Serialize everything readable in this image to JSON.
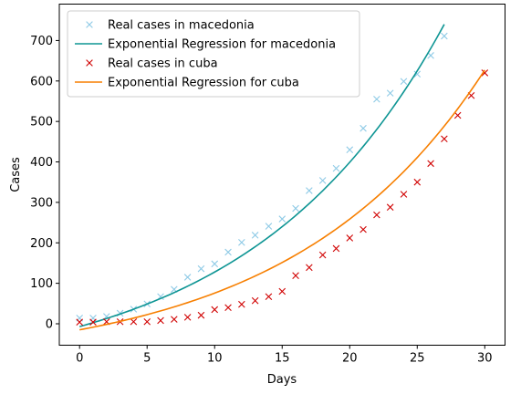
{
  "chart_data": {
    "type": "line",
    "title": "",
    "xlabel": "Days",
    "ylabel": "Cases",
    "xlim": [
      -1.5,
      31.5
    ],
    "ylim": [
      -53,
      790
    ],
    "xticks": [
      0,
      5,
      10,
      15,
      20,
      25,
      30
    ],
    "yticks": [
      0,
      100,
      200,
      300,
      400,
      500,
      600,
      700
    ],
    "grid": false,
    "legend_position": "upper-left",
    "series": [
      {
        "name": "Real cases in macedonia",
        "kind": "scatter",
        "marker": "x",
        "color": "#8ecae6",
        "x": [
          0,
          1,
          2,
          3,
          4,
          5,
          6,
          7,
          8,
          9,
          10,
          11,
          12,
          13,
          14,
          15,
          16,
          17,
          18,
          19,
          20,
          21,
          22,
          23,
          24,
          25,
          26,
          27
        ],
        "y": [
          14,
          14,
          18,
          26,
          36,
          49,
          67,
          85,
          115,
          136,
          148,
          177,
          201,
          219,
          241,
          259,
          285,
          329,
          354,
          384,
          430,
          483,
          555,
          570,
          599,
          617,
          663,
          711
        ]
      },
      {
        "name": "Exponential Regression for macedonia",
        "kind": "line",
        "color": "#0e9594",
        "x": [
          0,
          27
        ],
        "y": [
          -7,
          740
        ],
        "curve": "exponential"
      },
      {
        "name": "Real cases in cuba",
        "kind": "scatter",
        "marker": "x",
        "color": "#d00000",
        "x": [
          0,
          1,
          2,
          3,
          4,
          5,
          6,
          7,
          8,
          9,
          10,
          11,
          12,
          13,
          14,
          15,
          16,
          17,
          18,
          19,
          20,
          21,
          22,
          23,
          24,
          25,
          26,
          27,
          28,
          29,
          30
        ],
        "y": [
          4,
          4,
          5,
          5,
          5,
          5,
          8,
          11,
          16,
          21,
          35,
          40,
          48,
          57,
          67,
          80,
          119,
          139,
          170,
          186,
          212,
          233,
          269,
          288,
          320,
          350,
          396,
          457,
          515,
          564,
          620
        ]
      },
      {
        "name": "Exponential Regression for cuba",
        "kind": "line",
        "color": "#f77f00",
        "x": [
          0,
          30
        ],
        "y": [
          -15,
          627
        ],
        "curve": "exponential"
      }
    ]
  }
}
